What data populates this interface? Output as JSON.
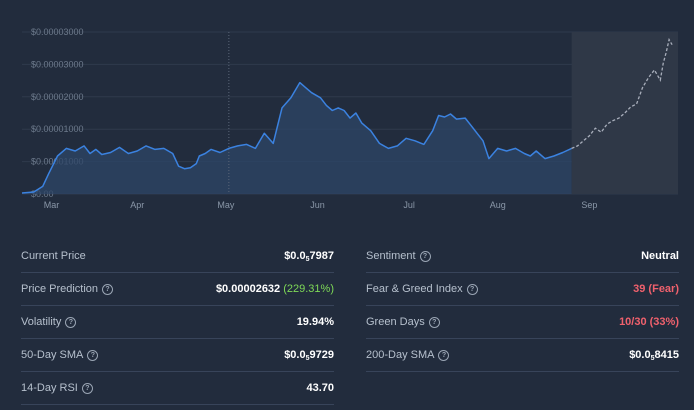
{
  "colors": {
    "background": "#222c3d",
    "line": "#3b82e0",
    "area": "#2d4567",
    "forecast_line": "#a8aebb",
    "forecast_area": "#2f3847",
    "green": "#7ed957",
    "red": "#f0616d"
  },
  "chart_data": {
    "type": "line",
    "title": "",
    "xlabel": "",
    "ylabel": "",
    "y_ticks": [
      "$0.00003000",
      "$0.00003000",
      "$0.00002000",
      "$0.00001000",
      "$0.00001000",
      "$0.00"
    ],
    "x_ticks": [
      "Mar",
      "Apr",
      "May",
      "Jun",
      "Jul",
      "Aug",
      "Sep"
    ],
    "ylim": [
      0,
      3.2e-05
    ],
    "series": [
      {
        "name": "Price",
        "style": "solid",
        "x_days": [
          0,
          4,
          7,
          9,
          12,
          15,
          18,
          21,
          23,
          25,
          27,
          30,
          33,
          36,
          39,
          42,
          45,
          48,
          51,
          53,
          55,
          57,
          59,
          60,
          62,
          64,
          67,
          70,
          73,
          76,
          79,
          82,
          85,
          88,
          91,
          94,
          96,
          98,
          101,
          103,
          105,
          107,
          109,
          111,
          113,
          115,
          118,
          121,
          124,
          127,
          130,
          133,
          136,
          139,
          141,
          143,
          145,
          147,
          150,
          152,
          154,
          156,
          158,
          161,
          164,
          167,
          170,
          172,
          174,
          177,
          180,
          183,
          186
        ],
        "values": [
          2e-07,
          4e-07,
          1.5e-06,
          4e-06,
          7.5e-06,
          9e-06,
          8.5e-06,
          9.5e-06,
          8e-06,
          8.8e-06,
          7.8e-06,
          8.2e-06,
          9.2e-06,
          8e-06,
          8.5e-06,
          9.5e-06,
          8.8e-06,
          9e-06,
          8e-06,
          5.5e-06,
          5e-06,
          5.2e-06,
          6e-06,
          7.5e-06,
          8e-06,
          8.8e-06,
          8.2e-06,
          9e-06,
          9.5e-06,
          9.8e-06,
          9e-06,
          1.2e-05,
          1e-05,
          1.7e-05,
          1.9e-05,
          2.2e-05,
          2.1e-05,
          2e-05,
          1.9e-05,
          1.75e-05,
          1.65e-05,
          1.7e-05,
          1.65e-05,
          1.5e-05,
          1.6e-05,
          1.4e-05,
          1.25e-05,
          1e-05,
          9e-06,
          9.5e-06,
          1.1e-05,
          1.05e-05,
          9.8e-06,
          1.25e-05,
          1.55e-05,
          1.52e-05,
          1.58e-05,
          1.48e-05,
          1.5e-05,
          1.35e-05,
          1.2e-05,
          1.05e-05,
          7e-06,
          9e-06,
          8.5e-06,
          9e-06,
          8e-06,
          7.5e-06,
          8.5e-06,
          7e-06,
          7.5e-06,
          8.2e-06,
          9e-06
        ]
      },
      {
        "name": "Prediction",
        "style": "dashed",
        "x_days": [
          186,
          188,
          190,
          192,
          194,
          196,
          198,
          200,
          202,
          204,
          206,
          208,
          210,
          212,
          214,
          216,
          217,
          218,
          219,
          220
        ],
        "values": [
          9e-06,
          9.5e-06,
          1.05e-05,
          1.15e-05,
          1.3e-05,
          1.22e-05,
          1.38e-05,
          1.45e-05,
          1.5e-05,
          1.6e-05,
          1.72e-05,
          1.78e-05,
          2.1e-05,
          2.3e-05,
          2.45e-05,
          2.25e-05,
          2.58e-05,
          2.8e-05,
          3.05e-05,
          2.95e-05
        ]
      }
    ],
    "x_tick_days": [
      10,
      39,
      69,
      100,
      131,
      161,
      192
    ],
    "today_marker_day": 70,
    "forecast_start_day": 186,
    "x_range": [
      0,
      222
    ]
  },
  "stats": {
    "left": [
      {
        "label": "Current Price",
        "value": "$0.0",
        "sub": "5",
        "value_rest": "7987",
        "has_info": false
      },
      {
        "label": "Price Prediction",
        "value": "$0.00002632",
        "extra": "(229.31%)",
        "has_info": true
      },
      {
        "label": "Volatility",
        "value": "19.94%",
        "has_info": true
      },
      {
        "label": "50-Day SMA",
        "value": "$0.0",
        "sub": "5",
        "value_rest": "9729",
        "has_info": true
      },
      {
        "label": "14-Day RSI",
        "value": "43.70",
        "has_info": true
      }
    ],
    "right": [
      {
        "label": "Sentiment",
        "value": "Neutral",
        "has_info": true
      },
      {
        "label": "Fear & Greed Index",
        "value": "39 (Fear)",
        "has_info": true
      },
      {
        "label": "Green Days",
        "value": "10/30 (33%)",
        "has_info": true
      },
      {
        "label": "200-Day SMA",
        "value": "$0.0",
        "sub": "5",
        "value_rest": "8415",
        "has_info": true
      }
    ]
  },
  "info_glyph": "?"
}
